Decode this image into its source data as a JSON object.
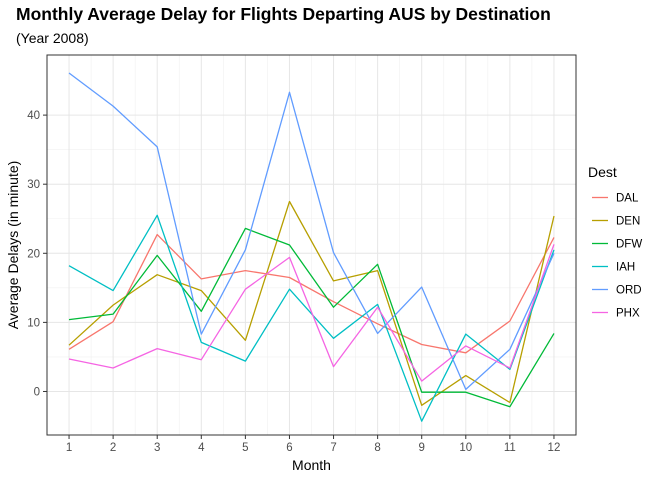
{
  "chart_data": {
    "type": "line",
    "title": "Monthly Average Delay for Flights Departing AUS by Destination",
    "subtitle": "(Year 2008)",
    "xlabel": "Month",
    "ylabel": "Average Delays (in minute)",
    "x": [
      1,
      2,
      3,
      4,
      5,
      6,
      7,
      8,
      9,
      10,
      11,
      12
    ],
    "xlim": [
      0.5,
      12.5
    ],
    "ylim": [
      -6.3,
      48.7
    ],
    "yticks": [
      0,
      10,
      20,
      30,
      40
    ],
    "grid": true,
    "legend_title": "Dest",
    "legend_position": "right",
    "series": [
      {
        "name": "DAL",
        "color": "#F8766D",
        "values": [
          6.1,
          10.1,
          22.7,
          16.3,
          17.5,
          16.5,
          13.0,
          9.8,
          6.8,
          5.6,
          10.2,
          22.3
        ]
      },
      {
        "name": "DEN",
        "color": "#B79F00",
        "values": [
          6.7,
          12.5,
          16.9,
          14.6,
          7.4,
          27.5,
          16.0,
          17.5,
          -2.0,
          2.3,
          -1.6,
          25.4
        ]
      },
      {
        "name": "DFW",
        "color": "#00BA38",
        "values": [
          10.4,
          11.2,
          19.7,
          11.6,
          23.6,
          21.2,
          12.2,
          18.4,
          -0.1,
          -0.1,
          -2.2,
          8.4
        ]
      },
      {
        "name": "IAH",
        "color": "#00BFC4",
        "values": [
          18.2,
          14.6,
          25.5,
          7.1,
          4.4,
          14.8,
          7.7,
          12.6,
          -4.3,
          8.3,
          3.2,
          20.5
        ]
      },
      {
        "name": "ORD",
        "color": "#619CFF",
        "values": [
          46.1,
          41.3,
          35.4,
          8.3,
          20.5,
          43.3,
          20.1,
          8.4,
          15.1,
          0.3,
          6.1,
          20.0
        ]
      },
      {
        "name": "PHX",
        "color": "#F564E3",
        "values": [
          4.7,
          3.4,
          6.2,
          4.6,
          14.8,
          19.4,
          3.6,
          12.2,
          1.5,
          6.6,
          3.4,
          21.3
        ]
      }
    ]
  }
}
